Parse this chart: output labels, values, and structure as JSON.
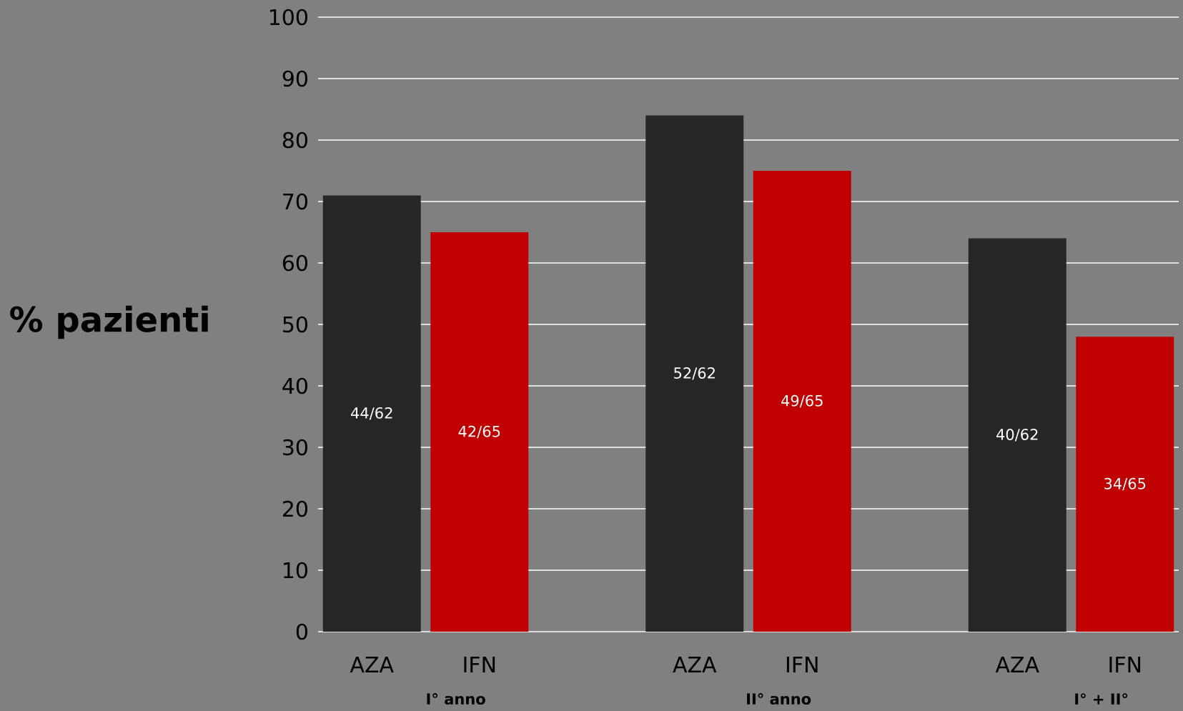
{
  "chart_data": {
    "type": "bar",
    "ylabel": "% pazienti",
    "categories": [
      "AZA",
      "IFN",
      "AZA",
      "IFN",
      "AZA",
      "IFN"
    ],
    "values": [
      71,
      65,
      84,
      75,
      64,
      48
    ],
    "colors": [
      "#262626",
      "#c00000",
      "#262626",
      "#c00000",
      "#262626",
      "#c00000"
    ],
    "value_labels": [
      "44/62",
      "42/65",
      "52/62",
      "49/65",
      "40/62",
      "34/65"
    ],
    "annotations": [
      "I° anno",
      "II° anno",
      "I° + II°"
    ],
    "ylim": [
      0,
      100
    ],
    "yticks": [
      0,
      10,
      20,
      30,
      40,
      50,
      60,
      70,
      80,
      90,
      100
    ],
    "grid": "y"
  }
}
